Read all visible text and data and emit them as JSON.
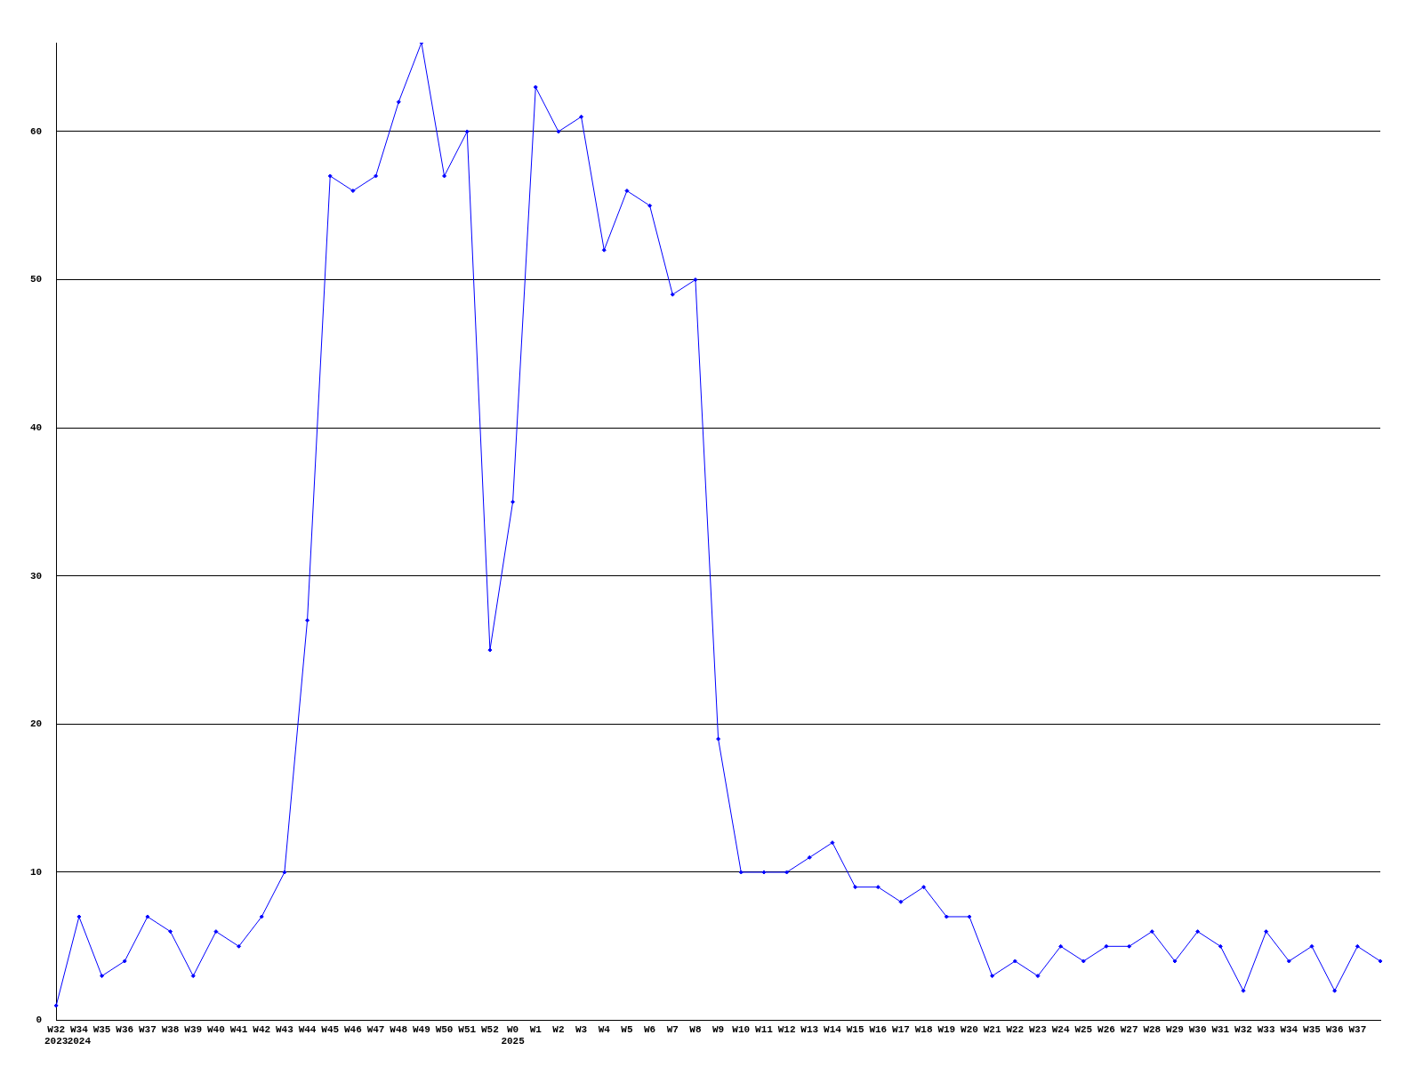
{
  "chart_data": {
    "type": "line",
    "categories": [
      "W32\n2023",
      "W34\n2024",
      "W35",
      "W36",
      "W37",
      "W38",
      "W39",
      "W40",
      "W41",
      "W42",
      "W43",
      "W44",
      "W45",
      "W46",
      "W47",
      "W48",
      "W49",
      "W50",
      "W51",
      "W52",
      "W0\n2025",
      "W1",
      "W2",
      "W3",
      "W4",
      "W5",
      "W6",
      "W7",
      "W8",
      "W9",
      "W10",
      "W11",
      "W12",
      "W13",
      "W14",
      "W15",
      "W16",
      "W17",
      "W18",
      "W19",
      "W20",
      "W21",
      "W22",
      "W23",
      "W24",
      "W25",
      "W26",
      "W27",
      "W28",
      "W29",
      "W30",
      "W31",
      "W32",
      "W33",
      "W34",
      "W35",
      "W36",
      "W37",
      null
    ],
    "series": [
      {
        "color": "#0000ff",
        "values": [
          1,
          7,
          3,
          4,
          7,
          6,
          3,
          6,
          5,
          7,
          10,
          27,
          57,
          56,
          57,
          62,
          66,
          57,
          60,
          25,
          35,
          63,
          60,
          61,
          52,
          56,
          55,
          49,
          50,
          19,
          10,
          10,
          10,
          11,
          12,
          9,
          9,
          8,
          9,
          7,
          7,
          3,
          4,
          3,
          5,
          4,
          5,
          5,
          6,
          4,
          6,
          5,
          2,
          6,
          4,
          5,
          2,
          5,
          4
        ]
      }
    ],
    "ylim": [
      0,
      66
    ],
    "yticks": [
      0,
      10,
      20,
      30,
      40,
      50,
      60
    ],
    "grid": "y",
    "marker": "diamond",
    "line_style": "solid"
  }
}
